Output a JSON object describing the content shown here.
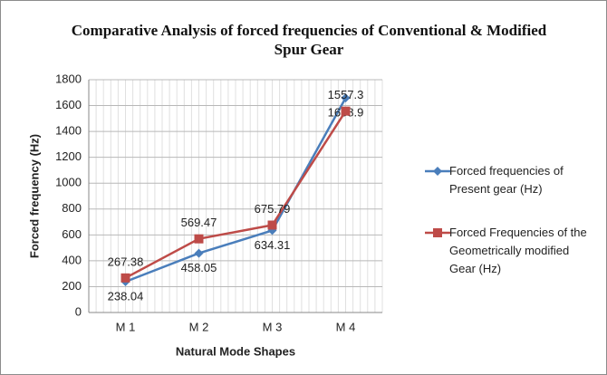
{
  "chart_data": {
    "type": "line",
    "title": "Comparative Analysis of forced frequencies of Conventional & Modified Spur Gear",
    "x_label": "Natural Mode Shapes",
    "y_label": "Forced frequency (Hz)",
    "categories": [
      "M 1",
      "M 2",
      "M 3",
      "M 4"
    ],
    "series": [
      {
        "name": "Forced frequencies of Present gear (Hz)",
        "color": "#4a7ebb",
        "marker": "diamond",
        "label_side": "below",
        "values": [
          238.04,
          458.05,
          634.31,
          1658.9
        ]
      },
      {
        "name": "Forced Frequencies of the Geometrically modified Gear (Hz)",
        "color": "#be4b48",
        "marker": "square",
        "label_side": "above",
        "values": [
          267.38,
          569.47,
          675.79,
          1557.3
        ]
      }
    ],
    "ylim": [
      0,
      1800
    ],
    "yticks": [
      0,
      200,
      400,
      600,
      800,
      1000,
      1200,
      1400,
      1600,
      1800
    ],
    "grid": true,
    "legend": "right"
  }
}
